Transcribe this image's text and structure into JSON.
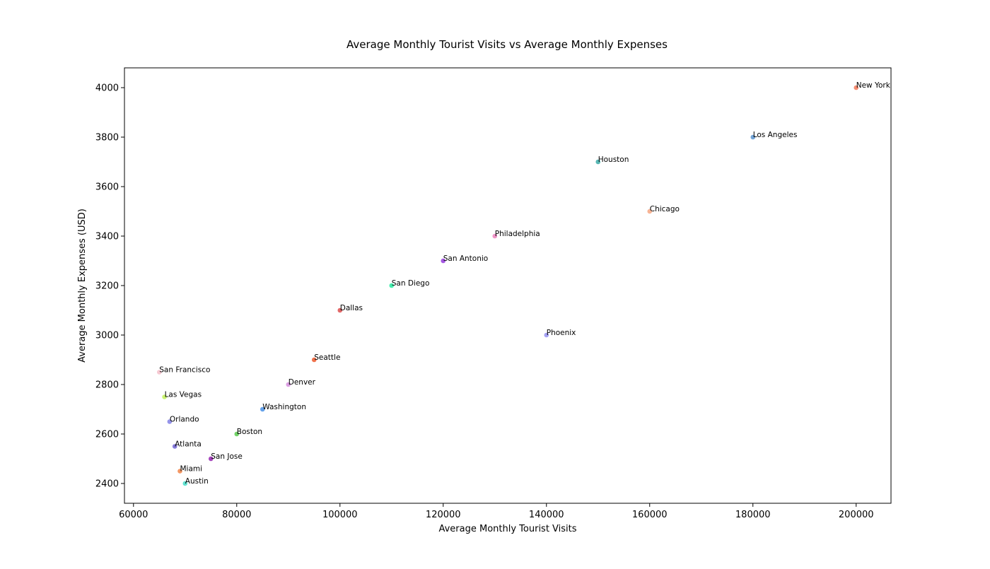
{
  "chart_data": {
    "type": "scatter",
    "title": "Average Monthly Tourist Visits vs Average Monthly Expenses",
    "xlabel": "Average Monthly Tourist Visits",
    "ylabel": "Average Monthly Expenses (USD)",
    "xlim": [
      58250,
      206750
    ],
    "ylim": [
      2320,
      4080
    ],
    "xticks": [
      60000,
      80000,
      100000,
      120000,
      140000,
      160000,
      180000,
      200000
    ],
    "yticks": [
      2400,
      2600,
      2800,
      3000,
      3200,
      3400,
      3600,
      3800,
      4000
    ],
    "grid": false,
    "points": [
      {
        "label": "New York",
        "x": 200000,
        "y": 4000,
        "color": "#f4876a"
      },
      {
        "label": "Los Angeles",
        "x": 180000,
        "y": 3800,
        "color": "#6b9fd4"
      },
      {
        "label": "Houston",
        "x": 150000,
        "y": 3700,
        "color": "#4fb3b0"
      },
      {
        "label": "Chicago",
        "x": 160000,
        "y": 3500,
        "color": "#f7b08f"
      },
      {
        "label": "Philadelphia",
        "x": 130000,
        "y": 3400,
        "color": "#ee8fc4"
      },
      {
        "label": "San Antonio",
        "x": 120000,
        "y": 3300,
        "color": "#a04fe0"
      },
      {
        "label": "San Diego",
        "x": 110000,
        "y": 3200,
        "color": "#3cecaa"
      },
      {
        "label": "Dallas",
        "x": 100000,
        "y": 3100,
        "color": "#e06060"
      },
      {
        "label": "Phoenix",
        "x": 140000,
        "y": 3000,
        "color": "#9f9cf2"
      },
      {
        "label": "Seattle",
        "x": 95000,
        "y": 2900,
        "color": "#ee6a42"
      },
      {
        "label": "San Francisco",
        "x": 65000,
        "y": 2850,
        "color": "#f6c6d0"
      },
      {
        "label": "Denver",
        "x": 90000,
        "y": 2800,
        "color": "#d99be0"
      },
      {
        "label": "Las Vegas",
        "x": 66000,
        "y": 2750,
        "color": "#c7f26a"
      },
      {
        "label": "Washington",
        "x": 85000,
        "y": 2700,
        "color": "#5c9ce8"
      },
      {
        "label": "Orlando",
        "x": 67000,
        "y": 2650,
        "color": "#8f8ee8"
      },
      {
        "label": "Boston",
        "x": 80000,
        "y": 2600,
        "color": "#6ad060"
      },
      {
        "label": "Atlanta",
        "x": 68000,
        "y": 2550,
        "color": "#8074d8"
      },
      {
        "label": "San Jose",
        "x": 75000,
        "y": 2500,
        "color": "#a03ab8"
      },
      {
        "label": "Miami",
        "x": 69000,
        "y": 2450,
        "color": "#f2915c"
      },
      {
        "label": "Austin",
        "x": 70000,
        "y": 2400,
        "color": "#5ae0cf"
      }
    ]
  }
}
